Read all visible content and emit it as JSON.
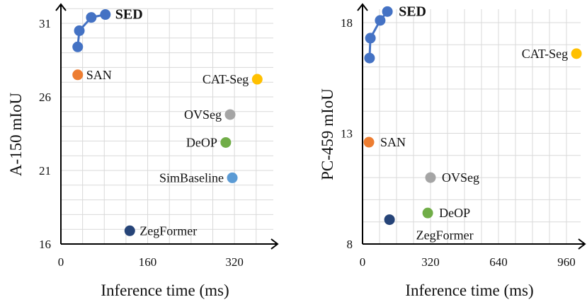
{
  "chart_data": [
    {
      "type": "scatter",
      "xlabel": "Inference time (ms)",
      "ylabel": "A-150 mIoU",
      "xticks": [
        0,
        160,
        320
      ],
      "yticks": [
        16,
        21,
        26,
        31
      ],
      "xlim": [
        0,
        400
      ],
      "ylim": [
        16,
        32.5
      ],
      "grid": true,
      "series": [
        {
          "name": "SED",
          "color": "#4472C4",
          "line": true,
          "bold": true,
          "points": [
            [
              31,
              29.4
            ],
            [
              34,
              30.5
            ],
            [
              56,
              31.4
            ],
            [
              82,
              31.6
            ]
          ]
        },
        {
          "name": "SAN",
          "color": "#ED7D31",
          "points": [
            [
              31,
              27.5
            ]
          ]
        },
        {
          "name": "CAT-Seg",
          "color": "#FFC000",
          "points": [
            [
              362,
              27.2
            ]
          ]
        },
        {
          "name": "OVSeg",
          "color": "#A5A5A5",
          "points": [
            [
              312,
              24.8
            ]
          ]
        },
        {
          "name": "DeOP",
          "color": "#70AD47",
          "points": [
            [
              304,
              22.9
            ]
          ]
        },
        {
          "name": "SimBaseline",
          "color": "#5B9BD5",
          "points": [
            [
              316,
              20.5
            ]
          ]
        },
        {
          "name": "ZegFormer",
          "color": "#264478",
          "points": [
            [
              127,
              16.9
            ]
          ]
        }
      ]
    },
    {
      "type": "scatter",
      "xlabel": "Inference time (ms)",
      "ylabel": "PC-459 mIoU",
      "xticks": [
        0,
        320,
        640,
        960
      ],
      "yticks": [
        8,
        13,
        18
      ],
      "xlim": [
        0,
        1040
      ],
      "ylim": [
        8,
        18.9
      ],
      "grid": true,
      "series": [
        {
          "name": "SED",
          "color": "#4472C4",
          "line": true,
          "bold": true,
          "points": [
            [
              33,
              16.4
            ],
            [
              37,
              17.3
            ],
            [
              83,
              18.1
            ],
            [
              117,
              18.5
            ]
          ]
        },
        {
          "name": "CAT-Seg",
          "color": "#FFC000",
          "points": [
            [
              1007,
              16.6
            ]
          ]
        },
        {
          "name": "SAN",
          "color": "#ED7D31",
          "points": [
            [
              30,
              12.6
            ]
          ]
        },
        {
          "name": "OVSeg",
          "color": "#A5A5A5",
          "points": [
            [
              320,
              11.0
            ]
          ]
        },
        {
          "name": "DeOP",
          "color": "#70AD47",
          "points": [
            [
              307,
              9.4
            ]
          ]
        },
        {
          "name": "ZegFormer",
          "color": "#264478",
          "points": [
            [
              127,
              9.1
            ]
          ]
        }
      ]
    }
  ]
}
